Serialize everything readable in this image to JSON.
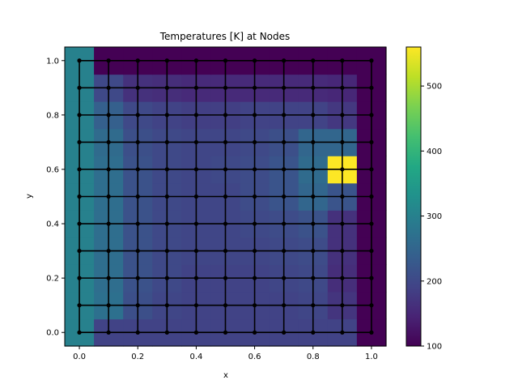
{
  "chart_data": {
    "type": "heatmap",
    "title": "Temperatures [K] at Nodes",
    "xlabel": "x",
    "ylabel": "y",
    "xlim": [
      -0.05,
      1.05
    ],
    "ylim": [
      -0.05,
      1.05
    ],
    "xticks": [
      "0.0",
      "0.2",
      "0.4",
      "0.6",
      "0.8",
      "1.0"
    ],
    "yticks": [
      "0.0",
      "0.2",
      "0.4",
      "0.6",
      "0.8",
      "1.0"
    ],
    "colorbar": {
      "colormap": "viridis",
      "range": [
        100,
        560
      ],
      "ticks": [
        "100",
        "200",
        "300",
        "400",
        "500"
      ]
    },
    "x": [
      0.0,
      0.1,
      0.2,
      0.3,
      0.4,
      0.5,
      0.6,
      0.7,
      0.8,
      0.9,
      1.0
    ],
    "y": [
      0.0,
      0.1,
      0.2,
      0.3,
      0.4,
      0.5,
      0.6,
      0.7,
      0.8,
      0.9,
      1.0
    ],
    "temperatures_rows_bottom_to_top": [
      [
        300,
        190,
        190,
        190,
        190,
        190,
        190,
        190,
        190,
        190,
        100
      ],
      [
        300,
        270,
        210,
        195,
        190,
        190,
        190,
        190,
        195,
        170,
        100
      ],
      [
        300,
        265,
        215,
        200,
        190,
        190,
        190,
        195,
        200,
        160,
        100
      ],
      [
        300,
        265,
        215,
        200,
        195,
        195,
        195,
        200,
        205,
        165,
        100
      ],
      [
        300,
        265,
        215,
        200,
        195,
        195,
        200,
        205,
        215,
        165,
        100
      ],
      [
        300,
        265,
        215,
        200,
        195,
        195,
        205,
        220,
        250,
        220,
        100
      ],
      [
        300,
        265,
        215,
        200,
        195,
        200,
        205,
        220,
        260,
        560,
        100
      ],
      [
        300,
        260,
        210,
        200,
        195,
        195,
        200,
        210,
        250,
        250,
        100
      ],
      [
        300,
        240,
        200,
        190,
        185,
        185,
        190,
        190,
        190,
        175,
        100
      ],
      [
        300,
        200,
        165,
        160,
        155,
        155,
        155,
        155,
        155,
        150,
        100
      ],
      [
        300,
        100,
        100,
        100,
        100,
        100,
        100,
        100,
        100,
        100,
        100
      ]
    ],
    "grid_lines": true
  }
}
